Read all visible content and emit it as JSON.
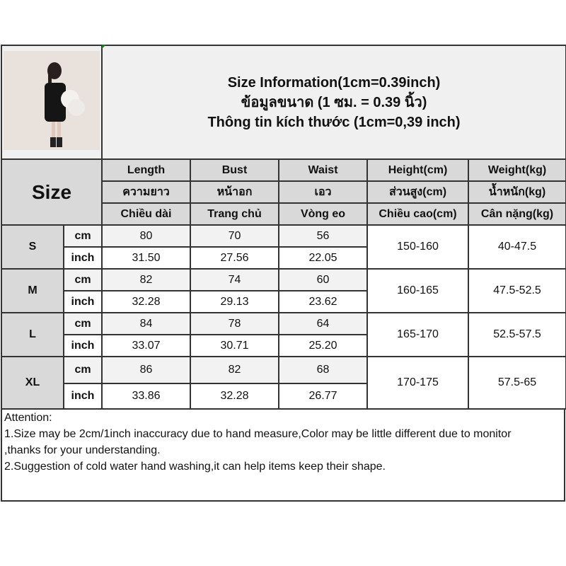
{
  "title_lines": [
    "Size Information(1cm=0.39inch)",
    "ข้อมูลขนาด (1 ซม. = 0.39 นิ้ว)",
    "Thông tin kích thước (1cm=0,39 inch)"
  ],
  "size_label": "Size",
  "headers": [
    [
      "Length",
      "Bust",
      "Waist",
      "Height(cm)",
      "Weight(kg)"
    ],
    [
      "ความยาว",
      "หน้าอก",
      "เอว",
      "ส่วนสูง(cm)",
      "น้ำหนัก(kg)"
    ],
    [
      "Chiều dài",
      "Trang chủ",
      "Vòng eo",
      "Chiều cao(cm)",
      "Cân nặng(kg)"
    ]
  ],
  "rows": [
    {
      "size": "S",
      "cm": [
        "80",
        "70",
        "56"
      ],
      "inch": [
        "31.50",
        "27.56",
        "22.05"
      ],
      "height": "150-160",
      "weight": "40-47.5"
    },
    {
      "size": "M",
      "cm": [
        "82",
        "74",
        "60"
      ],
      "inch": [
        "32.28",
        "29.13",
        "23.62"
      ],
      "height": "160-165",
      "weight": "47.5-52.5"
    },
    {
      "size": "L",
      "cm": [
        "84",
        "78",
        "64"
      ],
      "inch": [
        "33.07",
        "30.71",
        "25.20"
      ],
      "height": "165-170",
      "weight": "52.5-57.5"
    },
    {
      "size": "XL",
      "cm": [
        "86",
        "82",
        "68"
      ],
      "inch": [
        "33.86",
        "32.28",
        "26.77"
      ],
      "height": "170-175",
      "weight": "57.5-65"
    }
  ],
  "units": {
    "cm": "cm",
    "inch": "inch"
  },
  "attention": [
    "Attention:",
    "1.Size may be 2cm/1inch inaccuracy due to hand measure,Color may be little different due to monitor",
    ",thanks for your understanding.",
    "2.Suggestion of cold water hand washing,it can help items keep their shape."
  ]
}
